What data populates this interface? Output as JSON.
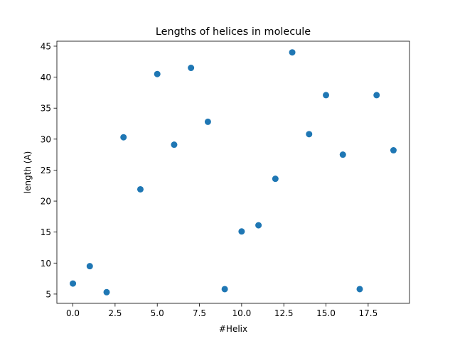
{
  "chart_data": {
    "type": "scatter",
    "title": "Lengths of helices in molecule",
    "xlabel": "#Helix",
    "ylabel": "length (A)",
    "xlim": [
      -0.95,
      19.95
    ],
    "ylim": [
      3.5,
      45.8
    ],
    "xticks": [
      0.0,
      2.5,
      5.0,
      7.5,
      10.0,
      12.5,
      15.0,
      17.5
    ],
    "xtick_labels": [
      "0.0",
      "2.5",
      "5.0",
      "7.5",
      "10.0",
      "12.5",
      "15.0",
      "17.5"
    ],
    "yticks": [
      5,
      10,
      15,
      20,
      25,
      30,
      35,
      40,
      45
    ],
    "ytick_labels": [
      "5",
      "10",
      "15",
      "20",
      "25",
      "30",
      "35",
      "40",
      "45"
    ],
    "grid": false,
    "color": "#1f77b4",
    "x": [
      0,
      1,
      2,
      3,
      4,
      5,
      6,
      7,
      8,
      9,
      10,
      11,
      12,
      13,
      14,
      15,
      16,
      17,
      18,
      19
    ],
    "y": [
      6.7,
      9.5,
      5.3,
      30.3,
      21.9,
      40.5,
      29.1,
      41.5,
      32.8,
      5.8,
      15.1,
      16.1,
      23.6,
      44.0,
      30.8,
      37.1,
      27.5,
      5.8,
      37.1,
      28.2
    ]
  }
}
